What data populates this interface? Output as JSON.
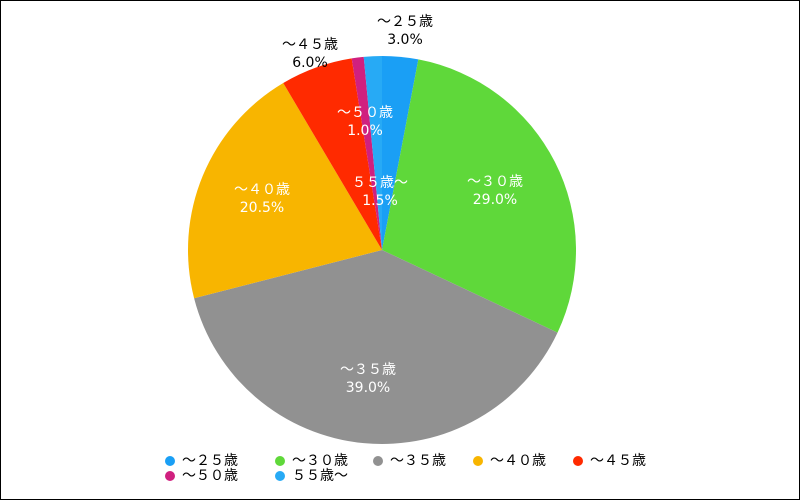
{
  "chart_data": {
    "type": "pie",
    "categories": [
      "～２５歳",
      "～３０歳",
      "～３５歳",
      "～４０歳",
      "～４５歳",
      "～５０歳",
      "５５歳～"
    ],
    "values": [
      3.0,
      29.0,
      39.0,
      20.5,
      6.0,
      1.0,
      1.5
    ],
    "value_labels": [
      "3.0%",
      "29.0%",
      "39.0%",
      "20.5%",
      "6.0%",
      "1.0%",
      "1.5%"
    ],
    "colors": [
      "#1a9ff5",
      "#5fd83a",
      "#919191",
      "#f8b500",
      "#ff2a00",
      "#d0207f",
      "#27aaf5"
    ],
    "legend": "bottom"
  }
}
